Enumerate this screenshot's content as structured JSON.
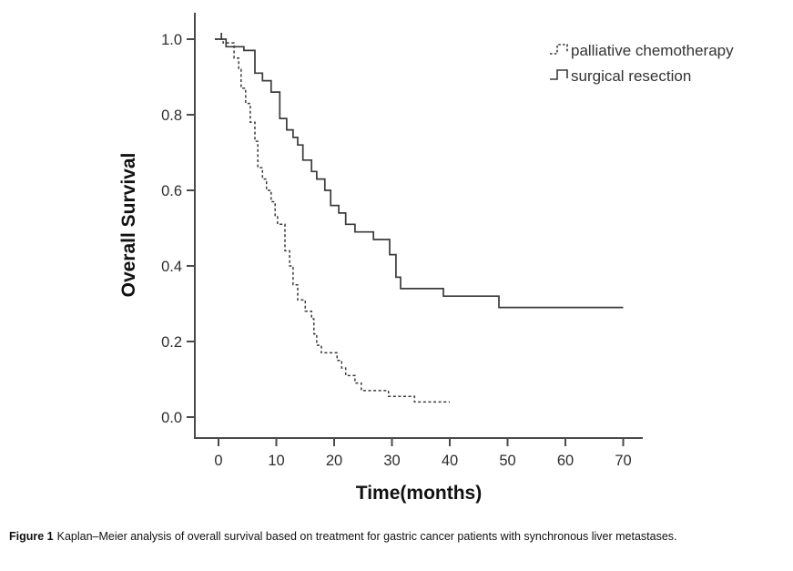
{
  "chart_data": {
    "type": "line",
    "variant": "kaplan_meier_step",
    "title": "",
    "xlabel": "Time(months)",
    "ylabel": "Overall Survival",
    "xlim": [
      0,
      73
    ],
    "ylim": [
      0,
      1.05
    ],
    "grid": false,
    "x_ticks": [
      0,
      10,
      20,
      30,
      40,
      50,
      60,
      70
    ],
    "x_tick_labels": [
      "0",
      "10",
      "20",
      "30",
      "40",
      "50",
      "60",
      "70"
    ],
    "y_ticks": [
      1.0,
      0.8,
      0.6,
      0.4,
      0.2,
      0.0
    ],
    "y_tick_labels": [
      "1.0",
      "0.8",
      "0.6",
      "0.4",
      "0.2",
      "0.0"
    ],
    "line_color": "#3a3a3a",
    "legend_position": "top-right",
    "series": [
      {
        "name": "palliative chemotherapy",
        "style": "dashed",
        "color": "#3a3a3a",
        "start": [
          0,
          1.0
        ],
        "steps": [
          [
            0.8,
            0.99
          ],
          [
            2.7,
            0.95
          ],
          [
            3.5,
            0.92
          ],
          [
            3.9,
            0.87
          ],
          [
            4.7,
            0.83
          ],
          [
            5.5,
            0.78
          ],
          [
            6.3,
            0.73
          ],
          [
            6.8,
            0.66
          ],
          [
            7.6,
            0.63
          ],
          [
            8.3,
            0.6
          ],
          [
            9.1,
            0.57
          ],
          [
            9.8,
            0.53
          ],
          [
            10.2,
            0.51
          ],
          [
            11.5,
            0.44
          ],
          [
            12.3,
            0.4
          ],
          [
            12.9,
            0.35
          ],
          [
            13.7,
            0.31
          ],
          [
            15.0,
            0.28
          ],
          [
            16.1,
            0.26
          ],
          [
            16.5,
            0.22
          ],
          [
            17.0,
            0.19
          ],
          [
            17.8,
            0.17
          ],
          [
            20.5,
            0.15
          ],
          [
            21.3,
            0.13
          ],
          [
            22.0,
            0.11
          ],
          [
            23.6,
            0.09
          ],
          [
            24.7,
            0.07
          ],
          [
            29.4,
            0.055
          ],
          [
            33.9,
            0.04
          ]
        ],
        "end_time": 40,
        "censor_times": []
      },
      {
        "name": "surgical resection",
        "style": "solid",
        "color": "#3a3a3a",
        "start": [
          0,
          1.0
        ],
        "steps": [
          [
            1.3,
            0.98
          ],
          [
            4.4,
            0.97
          ],
          [
            6.3,
            0.91
          ],
          [
            7.6,
            0.89
          ],
          [
            9.1,
            0.86
          ],
          [
            10.6,
            0.79
          ],
          [
            11.8,
            0.76
          ],
          [
            12.9,
            0.74
          ],
          [
            13.7,
            0.72
          ],
          [
            14.6,
            0.68
          ],
          [
            16.1,
            0.65
          ],
          [
            17.0,
            0.63
          ],
          [
            18.4,
            0.6
          ],
          [
            19.4,
            0.56
          ],
          [
            20.8,
            0.54
          ],
          [
            22.0,
            0.51
          ],
          [
            23.6,
            0.49
          ],
          [
            26.8,
            0.47
          ],
          [
            29.6,
            0.43
          ],
          [
            30.7,
            0.37
          ],
          [
            31.5,
            0.34
          ],
          [
            38.9,
            0.32
          ],
          [
            48.5,
            0.29
          ]
        ],
        "end_time": 70,
        "censor_times": [
          0.5
        ]
      }
    ]
  },
  "caption": {
    "label": "Figure 1",
    "text": "Kaplan–Meier analysis of overall survival based on treatment for gastric cancer patients with synchronous liver metastases."
  }
}
